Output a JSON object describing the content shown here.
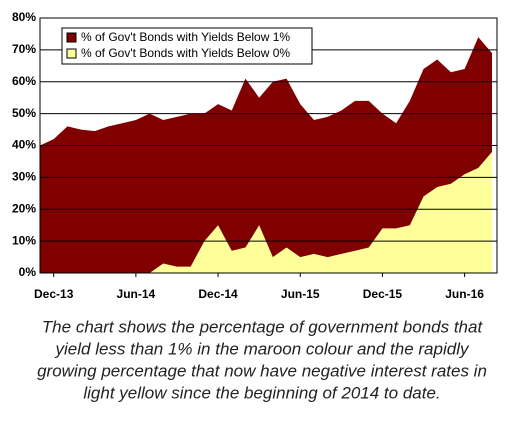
{
  "chart_data": {
    "type": "area",
    "categories": [
      null,
      "Dec-13",
      null,
      null,
      null,
      null,
      null,
      "Jun-14",
      null,
      null,
      null,
      null,
      null,
      "Dec-14",
      null,
      null,
      null,
      null,
      null,
      "Jun-15",
      null,
      null,
      null,
      null,
      null,
      "Dec-15",
      null,
      null,
      null,
      null,
      null,
      "Jun-16",
      null,
      null
    ],
    "series": [
      {
        "name": "% of Gov't Bonds with Yields Below 1%",
        "color": "#800000",
        "values": [
          40,
          42,
          46,
          45,
          44.5,
          46,
          47,
          48,
          50,
          48,
          49,
          50,
          50,
          53,
          51,
          61,
          55,
          60,
          61,
          53,
          48,
          49,
          51,
          54,
          54,
          50,
          47,
          54,
          64,
          67,
          63,
          64,
          74,
          69
        ]
      },
      {
        "name": "% of Gov't Bonds with Yields Below 0%",
        "color": "#ffff99",
        "values": [
          0,
          0,
          0,
          0,
          0,
          0,
          0,
          0,
          0,
          3,
          2,
          2,
          10,
          15,
          7,
          8,
          15,
          5,
          8,
          5,
          6,
          5,
          6,
          7,
          8,
          14,
          14,
          15,
          24,
          27,
          28,
          31,
          33,
          38
        ]
      }
    ],
    "ylim": [
      0,
      80
    ],
    "yticks": [
      {
        "value": 0,
        "label": "0%"
      },
      {
        "value": 10,
        "label": "10%"
      },
      {
        "value": 20,
        "label": "20%"
      },
      {
        "value": 30,
        "label": "30%"
      },
      {
        "value": 40,
        "label": "40%"
      },
      {
        "value": 50,
        "label": "50%"
      },
      {
        "value": 60,
        "label": "60%"
      },
      {
        "value": 70,
        "label": "70%"
      },
      {
        "value": 80,
        "label": "80%"
      }
    ],
    "grid": true,
    "legend": "upper-left",
    "caption": [
      "The chart shows the percentage of government bonds that",
      "yield less than 1% in the maroon colour and the rapidly",
      "growing percentage that now have negative interest rates in",
      "light yellow since the beginning of 2014 to date."
    ]
  }
}
